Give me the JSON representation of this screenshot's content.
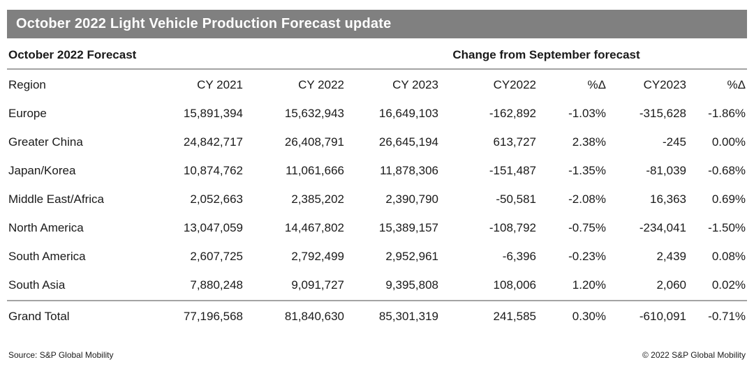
{
  "chart_data": {
    "type": "table",
    "title": "October 2022 Light Vehicle Production Forecast update",
    "group_headers": {
      "left": "October 2022 Forecast",
      "right": "Change from September forecast"
    },
    "columns": [
      "Region",
      "CY 2021",
      "CY 2022",
      "CY 2023",
      "CY2022",
      "%Δ",
      "CY2023",
      "%Δ"
    ],
    "rows": [
      [
        "Europe",
        "15,891,394",
        "15,632,943",
        "16,649,103",
        "-162,892",
        "-1.03%",
        "-315,628",
        "-1.86%"
      ],
      [
        "Greater China",
        "24,842,717",
        "26,408,791",
        "26,645,194",
        "613,727",
        "2.38%",
        "-245",
        "0.00%"
      ],
      [
        "Japan/Korea",
        "10,874,762",
        "11,061,666",
        "11,878,306",
        "-151,487",
        "-1.35%",
        "-81,039",
        "-0.68%"
      ],
      [
        "Middle East/Africa",
        "2,052,663",
        "2,385,202",
        "2,390,790",
        "-50,581",
        "-2.08%",
        "16,363",
        "0.69%"
      ],
      [
        "North America",
        "13,047,059",
        "14,467,802",
        "15,389,157",
        "-108,792",
        "-0.75%",
        "-234,041",
        "-1.50%"
      ],
      [
        "South America",
        "2,607,725",
        "2,792,499",
        "2,952,961",
        "-6,396",
        "-0.23%",
        "2,439",
        "0.08%"
      ],
      [
        "South Asia",
        "7,880,248",
        "9,091,727",
        "9,395,808",
        "108,006",
        "1.20%",
        "2,060",
        "0.02%"
      ]
    ],
    "grand_total": [
      "Grand Total",
      "77,196,568",
      "81,840,630",
      "85,301,319",
      "241,585",
      "0.30%",
      "-610,091",
      "-0.71%"
    ]
  },
  "footer": {
    "source": "Source: S&P Global Mobility",
    "copyright": "© 2022 S&P Global Mobility"
  },
  "colors": {
    "banner_bg": "#808080",
    "banner_text": "#ffffff",
    "rule": "#a3a3a3",
    "text": "#1a1a1a"
  }
}
